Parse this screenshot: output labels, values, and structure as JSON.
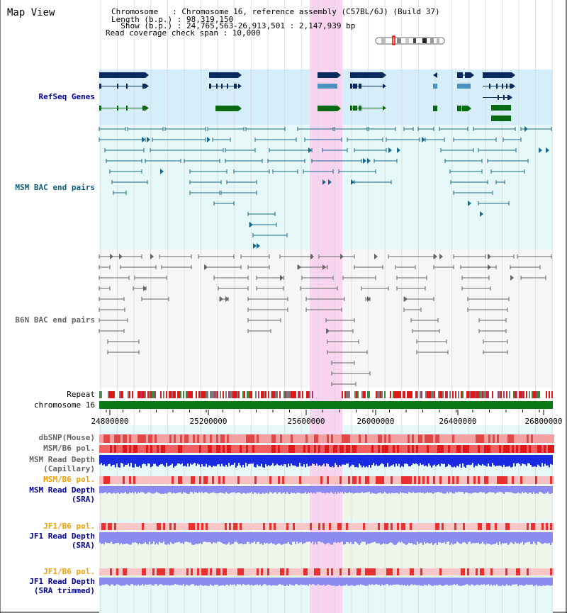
{
  "header": {
    "title": "Map View",
    "chromosome_line": "Chromosome   : Chromosome 16, reference assembly (C57BL/6J) (Build 37)",
    "length_line": "Length (b.p.) : 98,319,150",
    "show_line": "  Show (b.p.) : 24,765,563-26,913,501 : 2,147,939 bp",
    "coverage_line": "Read coverage check span : 10,000"
  },
  "tracks": {
    "refseq": "RefSeq Genes",
    "msm_bac": "MSM BAC end pairs",
    "b6n_bac": "B6N BAC end pairs",
    "repeat": "Repeat",
    "chromosome": "chromosome 16",
    "dbsnp": "dbSNP(Mouse)",
    "msm_b6_pol": "MSM/B6 pol.",
    "msm_read_depth_cap_1": "MSM Read Depth",
    "msm_read_depth_cap_2": "(Capillary)",
    "msm_b6_pol_2": "MSM/B6 pol.",
    "msm_read_depth_sra_1": "MSM Read Depth",
    "msm_read_depth_sra_2": "(SRA)",
    "jf1_b6_pol": "JF1/B6 pol.",
    "jf1_read_depth_sra_1": "JF1 Read Depth",
    "jf1_read_depth_sra_2": "(SRA)",
    "jf1_b6_pol_2": "JF1/B6 pol.",
    "jf1_read_depth_trim_1": "JF1 Read Depth",
    "jf1_read_depth_trim_2": "(SRA trimmed)"
  },
  "axis": {
    "ticks": [
      "24800000",
      "25200000",
      "25600000",
      "26000000",
      "26400000",
      "26800000"
    ]
  },
  "colors": {
    "refseq_bg": "#d6eefa",
    "bac_bg": "#e6f8f8",
    "highlight": "#f8d4f0",
    "gene_navy": "#0a2a5e",
    "gene_blue": "#4a90c0",
    "gene_green": "#0a6a14",
    "msm_bac": "#1a6a8a",
    "b6n_bac": "#666666",
    "chromosome_bar": "#0a7a14",
    "msm_depth": "#1a2ae0",
    "sra_depth": "#8a8af0",
    "label_navy": "#000090",
    "label_orange": "#f0a000",
    "label_teal": "#10607a"
  }
}
